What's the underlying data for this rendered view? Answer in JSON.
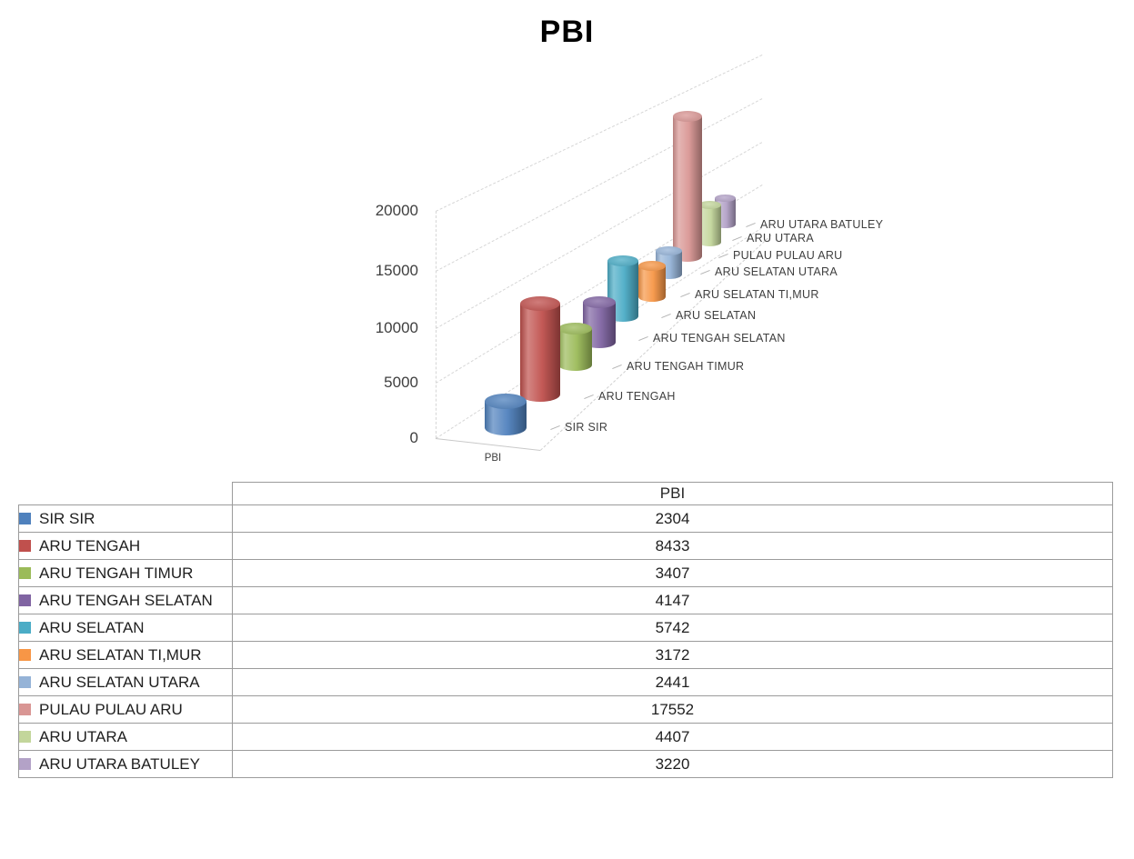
{
  "chart_data": {
    "type": "bar",
    "render_style": "3d-cylinder",
    "title": "PBI",
    "series_label": "PBI",
    "categories": [
      "SIR SIR",
      "ARU TENGAH",
      "ARU TENGAH TIMUR",
      "ARU TENGAH SELATAN",
      "ARU SELATAN",
      "ARU SELATAN TI,MUR",
      "ARU SELATAN UTARA",
      "PULAU PULAU ARU",
      "ARU UTARA",
      "ARU UTARA BATULEY"
    ],
    "values": [
      2304,
      8433,
      3407,
      4147,
      5742,
      3172,
      2441,
      17552,
      4407,
      3220
    ],
    "colors": [
      "#4F81BD",
      "#C0504D",
      "#9BBB59",
      "#8064A2",
      "#4BACC6",
      "#F79646",
      "#95B3D7",
      "#D99694",
      "#C3D69B",
      "#B3A2C7"
    ],
    "y_ticks": [
      0,
      5000,
      10000,
      15000,
      20000
    ],
    "ylim": [
      0,
      20000
    ],
    "grid": "dashed",
    "legend_position": "table-below"
  },
  "table": {
    "header": "PBI"
  }
}
